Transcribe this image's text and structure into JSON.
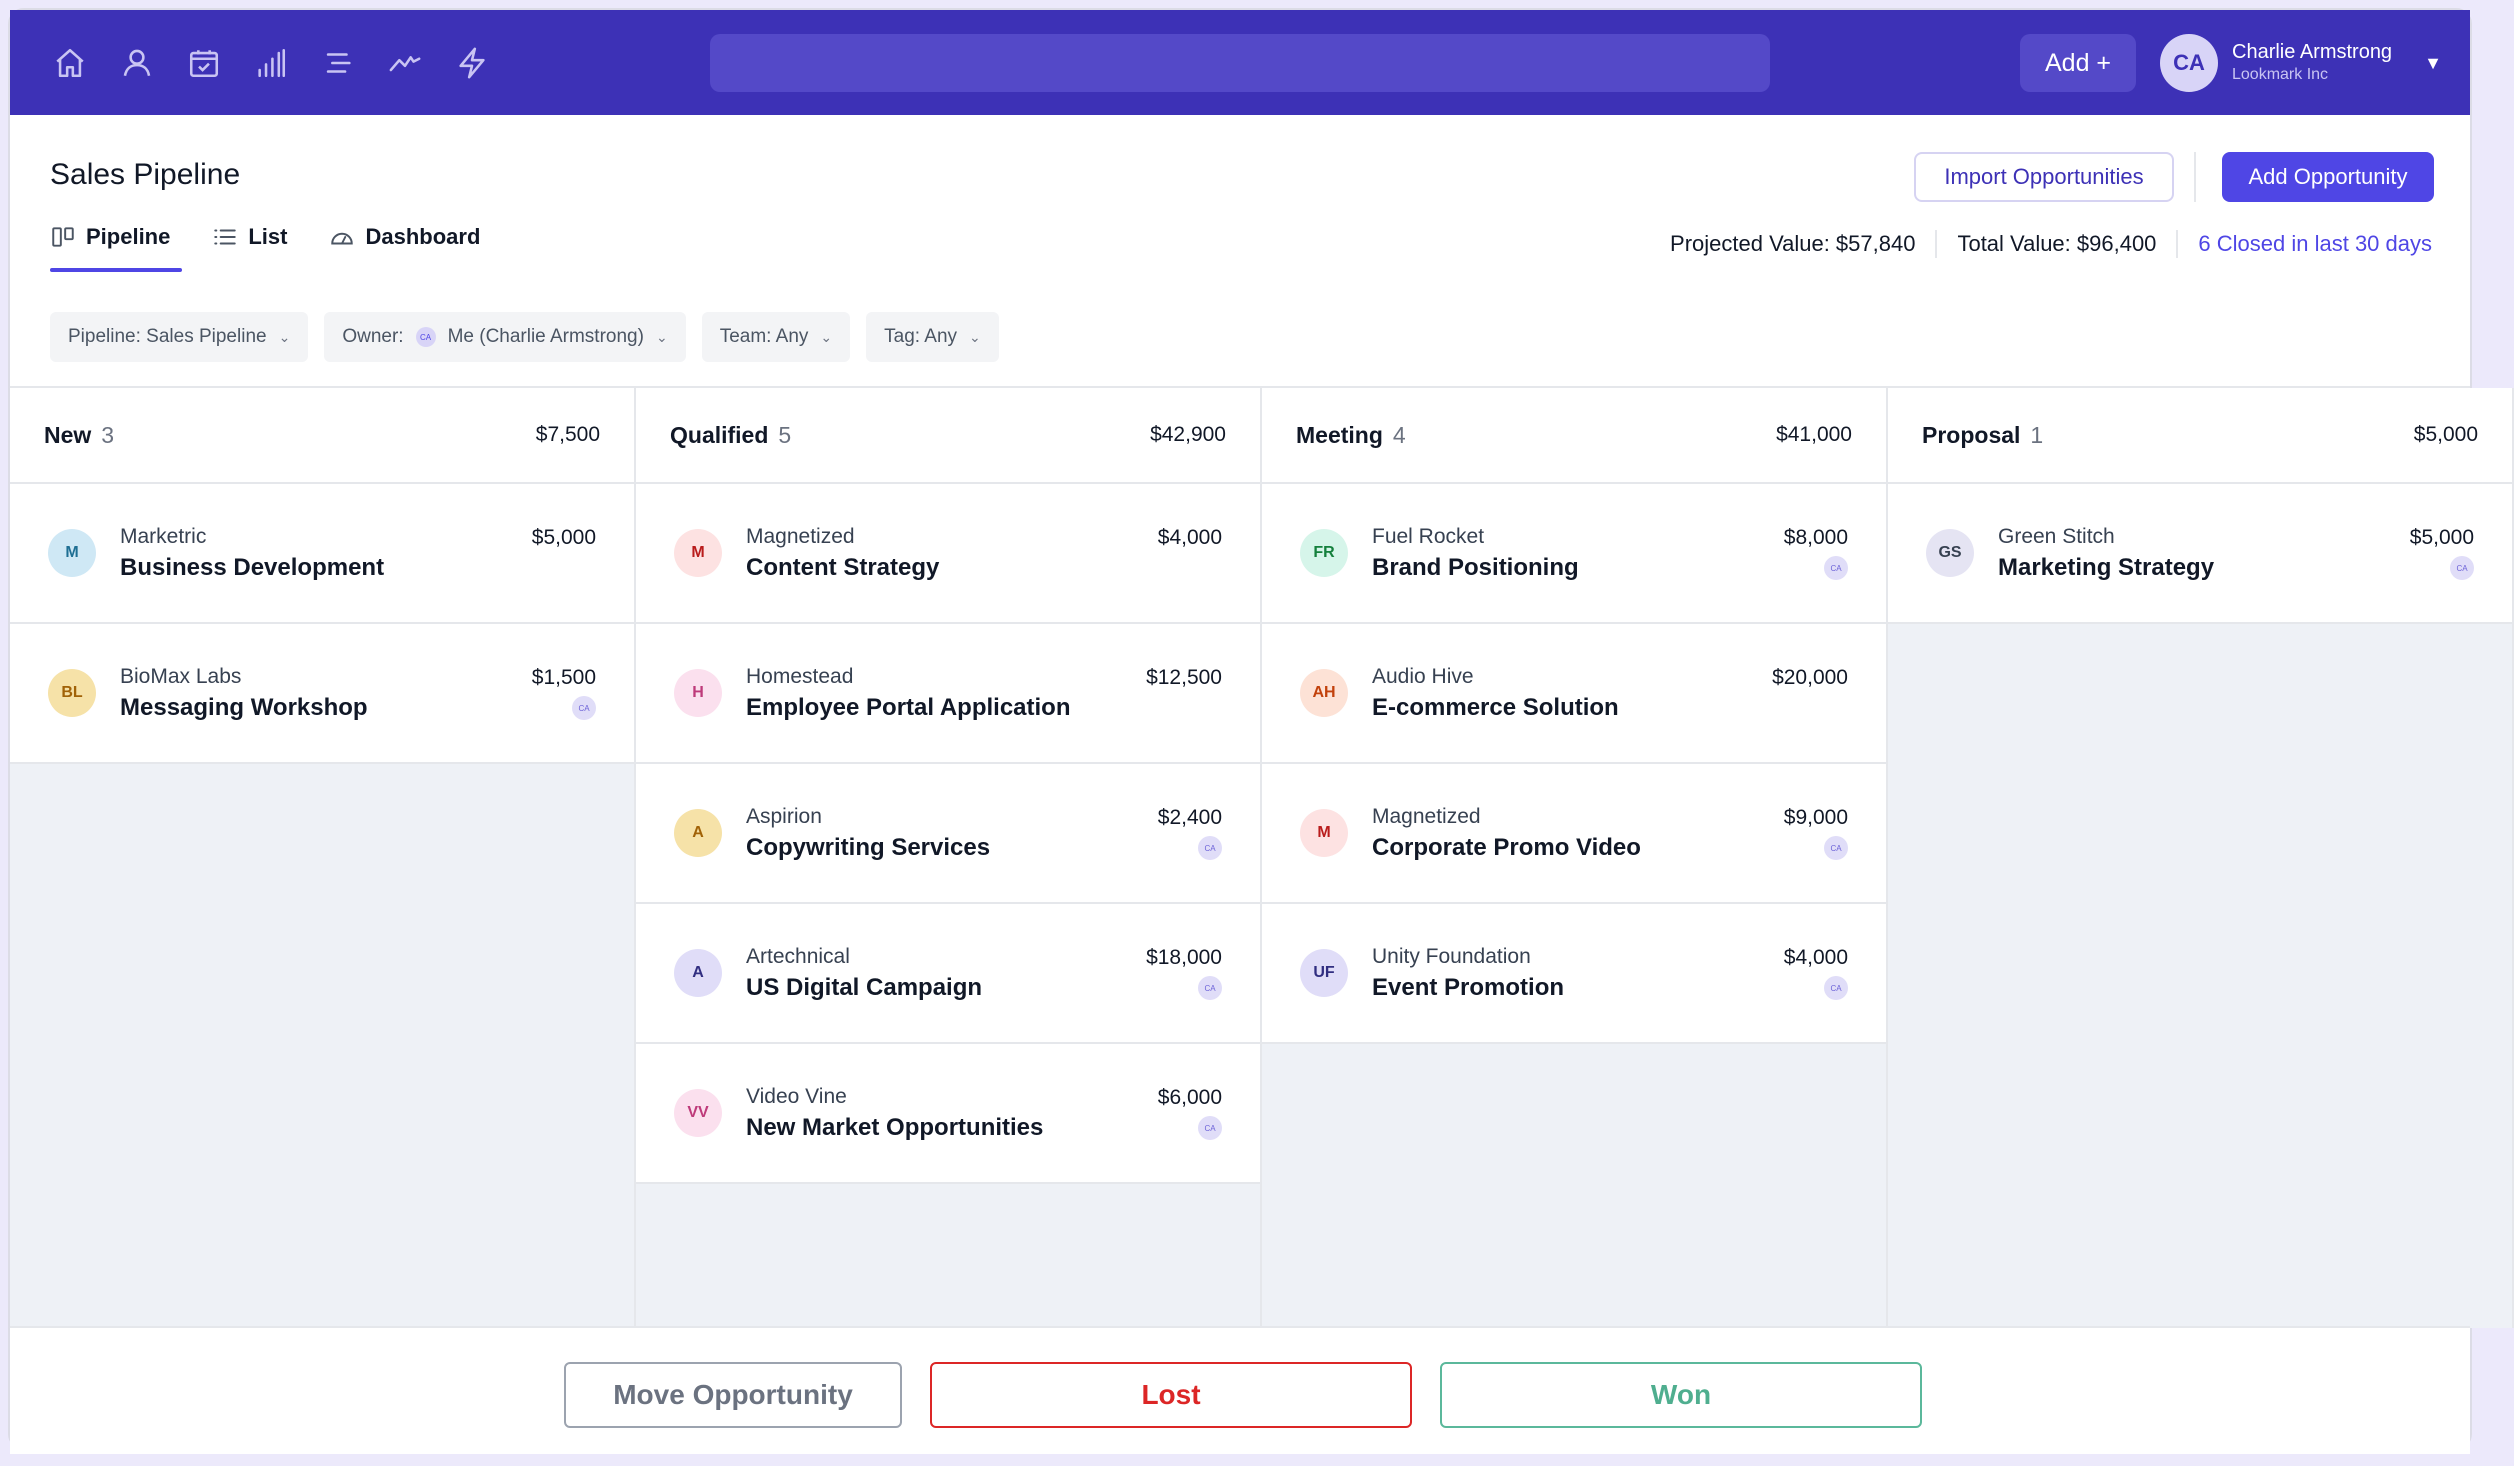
{
  "topbar": {
    "nav": [
      {
        "name": "home-icon"
      },
      {
        "name": "user-icon"
      },
      {
        "name": "calendar-icon"
      },
      {
        "name": "bar-chart-icon"
      },
      {
        "name": "menu-icon"
      },
      {
        "name": "trend-icon"
      },
      {
        "name": "lightning-icon"
      }
    ],
    "search_placeholder": "",
    "add_label": "Add +",
    "user": {
      "initials": "CA",
      "name": "Charlie Armstrong",
      "company": "Lookmark Inc"
    }
  },
  "header": {
    "title": "Sales Pipeline",
    "import_label": "Import Opportunities",
    "add_label": "Add Opportunity"
  },
  "tabs": [
    {
      "label": "Pipeline",
      "active": true
    },
    {
      "label": "List",
      "active": false
    },
    {
      "label": "Dashboard",
      "active": false
    }
  ],
  "summary": {
    "projected": "Projected Value: $57,840",
    "total": "Total Value: $96,400",
    "closed": "6 Closed in last 30 days"
  },
  "filters": {
    "pipeline": "Pipeline: Sales Pipeline",
    "owner_label": "Owner:",
    "owner_initials": "CA",
    "owner_value": "Me (Charlie Armstrong)",
    "team": "Team: Any",
    "tag": "Tag: Any"
  },
  "columns": [
    {
      "name": "New",
      "count": "3",
      "total": "$7,500",
      "cards": [
        {
          "initials": "M",
          "company": "Marketric",
          "title": "Business Development",
          "value": "$5,000",
          "owner": "",
          "bg": "#cfe8f5",
          "fg": "#1f6f93"
        },
        {
          "initials": "BL",
          "company": "BioMax Labs",
          "title": "Messaging Workshop",
          "value": "$1,500",
          "owner": "CA",
          "bg": "#f6e2a8",
          "fg": "#a16207"
        }
      ]
    },
    {
      "name": "Qualified",
      "count": "5",
      "total": "$42,900",
      "cards": [
        {
          "initials": "M",
          "company": "Magnetized",
          "title": "Content Strategy",
          "value": "$4,000",
          "owner": "",
          "bg": "#fde2e2",
          "fg": "#b91c1c"
        },
        {
          "initials": "H",
          "company": "Homestead",
          "title": "Employee Portal Application",
          "value": "$12,500",
          "owner": "",
          "bg": "#fbe0ee",
          "fg": "#be3a7a"
        },
        {
          "initials": "A",
          "company": "Aspirion",
          "title": "Copywriting Services",
          "value": "$2,400",
          "owner": "CA",
          "bg": "#f6e2a8",
          "fg": "#a16207"
        },
        {
          "initials": "A",
          "company": "Artechnical",
          "title": "US Digital Campaign",
          "value": "$18,000",
          "owner": "CA",
          "bg": "#e0ddf8",
          "fg": "#312e81"
        },
        {
          "initials": "VV",
          "company": "Video Vine",
          "title": "New Market Opportunities",
          "value": "$6,000",
          "owner": "CA",
          "bg": "#fbe0ee",
          "fg": "#be3a7a"
        }
      ]
    },
    {
      "name": "Meeting",
      "count": "4",
      "total": "$41,000",
      "cards": [
        {
          "initials": "FR",
          "company": "Fuel Rocket",
          "title": "Brand Positioning",
          "value": "$8,000",
          "owner": "CA",
          "bg": "#d6f5ea",
          "fg": "#15803d"
        },
        {
          "initials": "AH",
          "company": "Audio Hive",
          "title": "E-commerce Solution",
          "value": "$20,000",
          "owner": "",
          "bg": "#fde2d6",
          "fg": "#c2410c"
        },
        {
          "initials": "M",
          "company": "Magnetized",
          "title": "Corporate Promo Video",
          "value": "$9,000",
          "owner": "CA",
          "bg": "#fde2e2",
          "fg": "#b91c1c"
        },
        {
          "initials": "UF",
          "company": "Unity Foundation",
          "title": "Event Promotion",
          "value": "$4,000",
          "owner": "CA",
          "bg": "#e0ddf8",
          "fg": "#312e81"
        }
      ]
    },
    {
      "name": "Proposal",
      "count": "1",
      "total": "$5,000",
      "cards": [
        {
          "initials": "GS",
          "company": "Green Stitch",
          "title": "Marketing Strategy",
          "value": "$5,000",
          "owner": "CA",
          "bg": "#e5e4f3",
          "fg": "#374151"
        }
      ]
    }
  ],
  "actions": {
    "move": "Move Opportunity",
    "lost": "Lost",
    "won": "Won"
  }
}
